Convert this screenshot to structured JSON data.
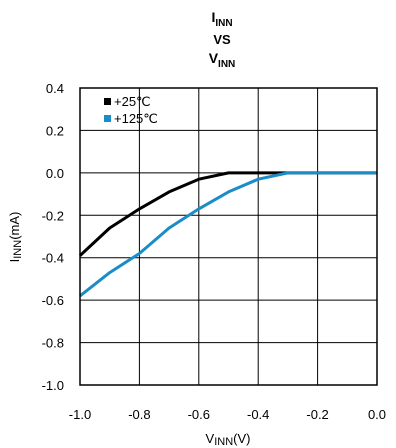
{
  "chart_data": {
    "type": "line",
    "title": {
      "line1_main": "I",
      "line1_sub": "INN",
      "line2": "VS",
      "line3_main": "V",
      "line3_sub": "INN"
    },
    "xlabel": {
      "main": "V",
      "sub": "INN",
      "suffix": "(V)"
    },
    "ylabel": {
      "main": "I",
      "sub": "INN",
      "suffix": "(mA)"
    },
    "xlim": [
      -1.0,
      0.0
    ],
    "ylim": [
      -1.0,
      0.4
    ],
    "x_ticks": [
      -1.0,
      -0.8,
      -0.6,
      -0.4,
      -0.2,
      0.0
    ],
    "x_tick_labels": [
      "-1.0",
      "-0.8",
      "-0.6",
      "-0.4",
      "-0.2",
      "0.0"
    ],
    "y_ticks": [
      0.4,
      0.2,
      0.0,
      -0.2,
      -0.4,
      -0.6,
      -0.8,
      -1.0
    ],
    "y_tick_labels": [
      "0.4",
      "0.2",
      "0.0",
      "-0.2",
      "-0.4",
      "-0.6",
      "-0.8",
      "-1.0"
    ],
    "grid": true,
    "legend_position": "top-left",
    "series": [
      {
        "name": "+25℃",
        "color": "#000000",
        "x": [
          -1.0,
          -0.9,
          -0.8,
          -0.7,
          -0.6,
          -0.5,
          -0.4,
          -0.3,
          -0.2,
          -0.1,
          0.0
        ],
        "y": [
          -0.39,
          -0.26,
          -0.17,
          -0.09,
          -0.03,
          0.0,
          0.0,
          0.0,
          0.0,
          0.0,
          0.0
        ]
      },
      {
        "name": "+125℃",
        "color": "#1a8cc8",
        "x": [
          -1.0,
          -0.9,
          -0.8,
          -0.7,
          -0.6,
          -0.5,
          -0.4,
          -0.3,
          -0.2,
          -0.1,
          0.0
        ],
        "y": [
          -0.58,
          -0.47,
          -0.38,
          -0.26,
          -0.17,
          -0.09,
          -0.03,
          0.0,
          0.0,
          0.0,
          0.0
        ]
      }
    ]
  }
}
